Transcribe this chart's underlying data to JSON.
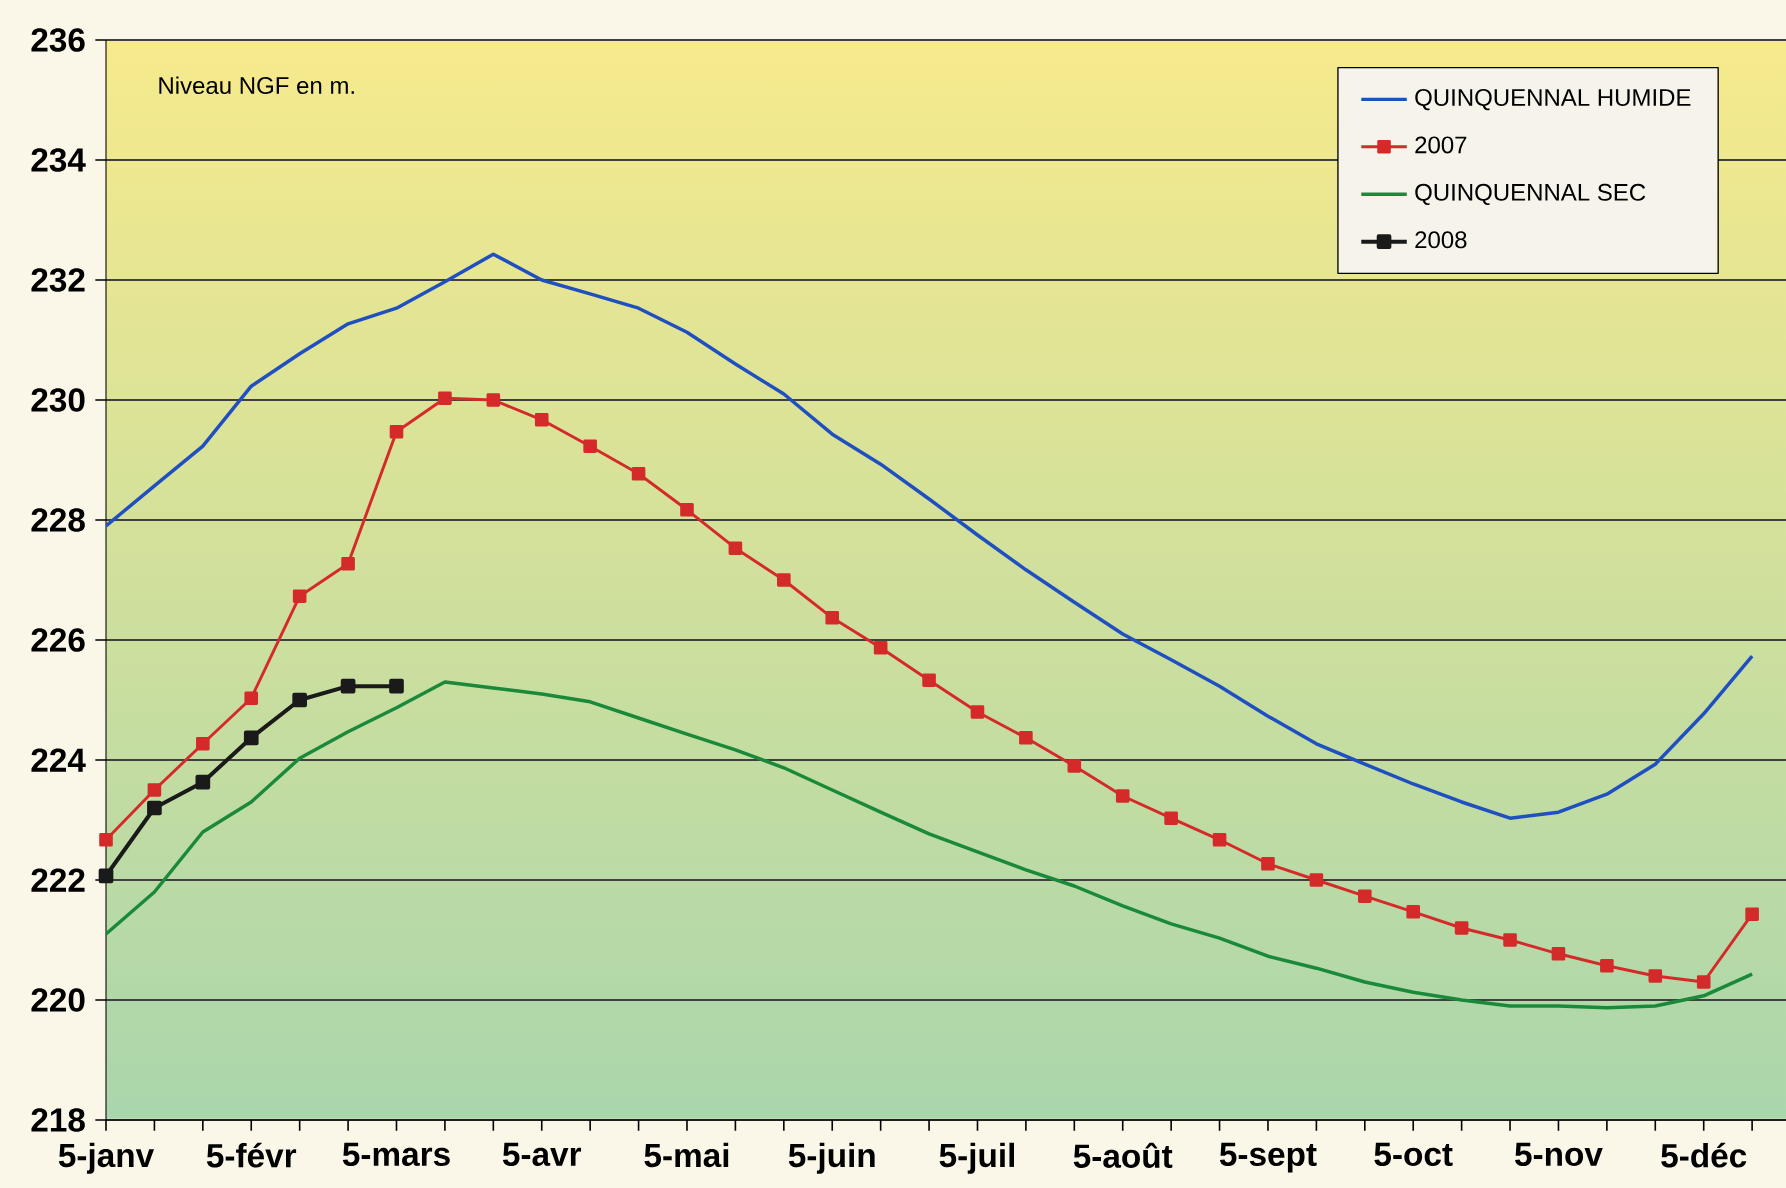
{
  "chart_data": {
    "type": "line",
    "annotations": [
      "Niveau NGF en m."
    ],
    "categories": [
      "5-janv",
      null,
      null,
      "5-févr",
      null,
      null,
      "5-mars",
      null,
      null,
      "5-avr",
      null,
      null,
      "5-mai",
      null,
      null,
      "5-juin",
      null,
      null,
      "5-juil",
      null,
      null,
      "5-août",
      null,
      null,
      "5-sept",
      null,
      null,
      "5-oct",
      null,
      null,
      "5-nov",
      null,
      null,
      "5-déc",
      null
    ],
    "series": [
      {
        "name": "QUINQUENNAL HUMIDE",
        "color": "#1f4fc0",
        "marker": "none",
        "values": [
          227.9,
          228.57,
          229.23,
          230.23,
          230.77,
          231.27,
          231.53,
          231.97,
          232.43,
          232.0,
          231.77,
          231.53,
          231.13,
          230.6,
          230.1,
          229.43,
          228.93,
          228.35,
          227.75,
          227.17,
          226.63,
          226.1,
          225.67,
          225.23,
          224.73,
          224.27,
          223.93,
          223.6,
          223.3,
          223.03,
          223.13,
          223.43,
          223.93,
          224.77,
          225.73
        ]
      },
      {
        "name": "2007",
        "color": "#d42a2a",
        "marker": "square",
        "values": [
          222.67,
          223.5,
          224.27,
          225.03,
          226.73,
          227.27,
          229.47,
          230.03,
          230.0,
          229.67,
          229.23,
          228.77,
          228.17,
          227.53,
          227.0,
          226.37,
          225.87,
          225.33,
          224.8,
          224.37,
          223.9,
          223.4,
          223.03,
          222.67,
          222.27,
          222.0,
          221.73,
          221.47,
          221.2,
          221.0,
          220.77,
          220.57,
          220.4,
          220.3,
          221.43
        ]
      },
      {
        "name": "QUINQUENNAL SEC",
        "color": "#1a8a3a",
        "marker": "none",
        "values": [
          221.1,
          221.8,
          222.8,
          223.3,
          224.03,
          224.47,
          224.87,
          225.3,
          225.2,
          225.1,
          224.97,
          224.7,
          224.43,
          224.17,
          223.87,
          223.5,
          223.13,
          222.77,
          222.47,
          222.17,
          221.9,
          221.57,
          221.27,
          221.03,
          220.73,
          220.53,
          220.3,
          220.13,
          220.0,
          219.9,
          219.9,
          219.87,
          219.9,
          220.07,
          220.43
        ]
      },
      {
        "name": "2008",
        "color": "#1a1a1a",
        "marker": "square",
        "values": [
          222.07,
          223.2,
          223.63,
          224.37,
          225.0,
          225.23,
          225.23,
          null,
          null,
          null,
          null,
          null,
          null,
          null,
          null,
          null,
          null,
          null,
          null,
          null,
          null,
          null,
          null,
          null,
          null,
          null,
          null,
          null,
          null,
          null,
          null,
          null,
          null,
          null,
          null
        ]
      }
    ],
    "ylim": [
      218,
      236
    ],
    "yticks": [
      218,
      220,
      222,
      224,
      226,
      228,
      230,
      232,
      234,
      236
    ],
    "grid": "y",
    "legend": "top right",
    "line_style": "solid"
  }
}
